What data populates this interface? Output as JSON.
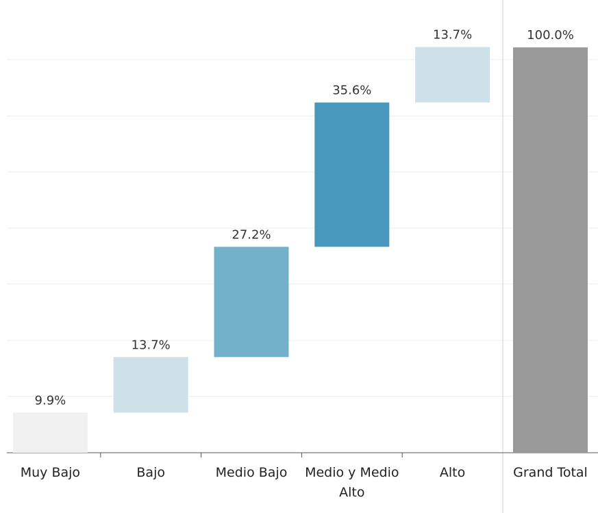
{
  "chart_data": {
    "type": "waterfall",
    "categories": [
      "Muy Bajo",
      "Bajo",
      "Medio Bajo",
      "Medio y Medio Alto",
      "Alto",
      "Grand Total"
    ],
    "values": [
      9.9,
      13.7,
      27.2,
      35.6,
      13.7,
      100.0
    ],
    "value_labels": [
      "9.9%",
      "13.7%",
      "27.2%",
      "35.6%",
      "13.7%",
      "100.0%"
    ],
    "colors": [
      "#f0f0f0",
      "#cfe1e8",
      "#73b1ca",
      "#4897bc",
      "#cfe1e8",
      "#999999"
    ],
    "ylim": [
      0,
      110
    ],
    "yticks": [
      13.9,
      27.7,
      41.6,
      55.4,
      69.3,
      83.1,
      97.0
    ],
    "grid": true
  }
}
